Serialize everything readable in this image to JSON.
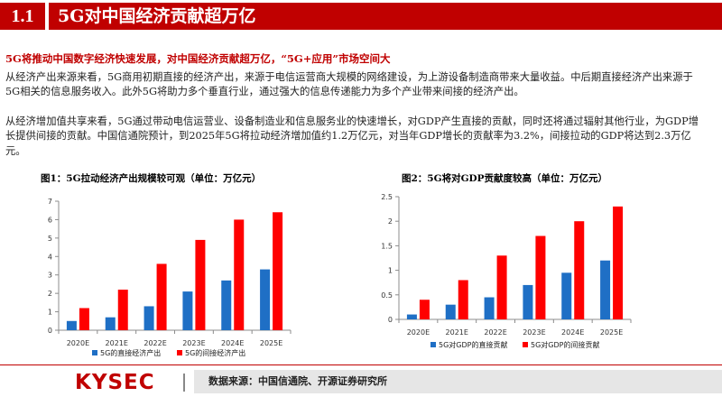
{
  "header": {
    "number": "1.1",
    "title": "5G对中国经济贡献超万亿"
  },
  "colors": {
    "brand_red": "#c00000",
    "blue": "#1f6fc5",
    "red": "#ff0000",
    "axis": "#8c8c8c"
  },
  "subheading": "5G将推动中国数字经济快速发展，对中国经济贡献超万亿，“5G+应用”市场空间大",
  "paragraphs": [
    "从经济产出来源来看，5G商用初期直接的经济产出，来源于电信运营商大规模的网络建设，为上游设备制造商带来大量收益。中后期直接经济产出来源于5G相关的信息服务收入。此外5G将助力多个垂直行业，通过强大的信息传递能力为多个产业带来间接的经济产出。",
    "从经济增加值共享来看，5G通过带动电信运营业、设备制造业和信息服务业的快速增长，对GDP产生直接的贡献，同时还将通过辐射其他行业，为GDP增长提供间接的贡献。中国信通院预计，到2025年5G将拉动经济增加值约1.2万亿元，对当年GDP增长的贡献率为3.2%，间接拉动的GDP将达到2.3万亿元。"
  ],
  "chart_data": [
    {
      "type": "bar",
      "title": "图1：5G拉动经济产出规模较可观（单位：万亿元）",
      "categories": [
        "2020E",
        "2021E",
        "2022E",
        "2023E",
        "2024E",
        "2025E"
      ],
      "series": [
        {
          "name": "5G的直接经济产出",
          "color": "#1f6fc5",
          "values": [
            0.5,
            0.7,
            1.3,
            2.1,
            2.7,
            3.3
          ]
        },
        {
          "name": "5G的间接经济产出",
          "color": "#ff0000",
          "values": [
            1.2,
            2.2,
            3.6,
            4.9,
            6.0,
            6.4
          ]
        }
      ],
      "ylim": [
        0,
        7
      ],
      "yticks": [
        0,
        1,
        2,
        3,
        4,
        5,
        6,
        7
      ],
      "ytick_labels": [
        "0",
        "1",
        "2",
        "3",
        "4",
        "5",
        "6",
        "7"
      ],
      "legend": "bottom",
      "grid": false
    },
    {
      "type": "bar",
      "title": "图2：5G将对GDP贡献度较高（单位：万亿元）",
      "categories": [
        "2020E",
        "2021E",
        "2022E",
        "2023E",
        "2024E",
        "2025E"
      ],
      "series": [
        {
          "name": "5G对GDP的直接贡献",
          "color": "#1f6fc5",
          "values": [
            0.1,
            0.3,
            0.45,
            0.7,
            0.95,
            1.2
          ]
        },
        {
          "name": "5G对GDP的间接贡献",
          "color": "#ff0000",
          "values": [
            0.4,
            0.8,
            1.3,
            1.7,
            2.0,
            2.3
          ]
        }
      ],
      "ylim": [
        0,
        2.5
      ],
      "yticks": [
        0,
        0.5,
        1,
        1.5,
        2,
        2.5
      ],
      "ytick_labels": [
        "0",
        "0.5",
        "1",
        "1.5",
        "2",
        "2.5"
      ],
      "legend": "bottom",
      "grid": false
    }
  ],
  "footer": {
    "logo": "KYSEC",
    "source": "数据来源：中国信通院、开源证券研究所"
  }
}
